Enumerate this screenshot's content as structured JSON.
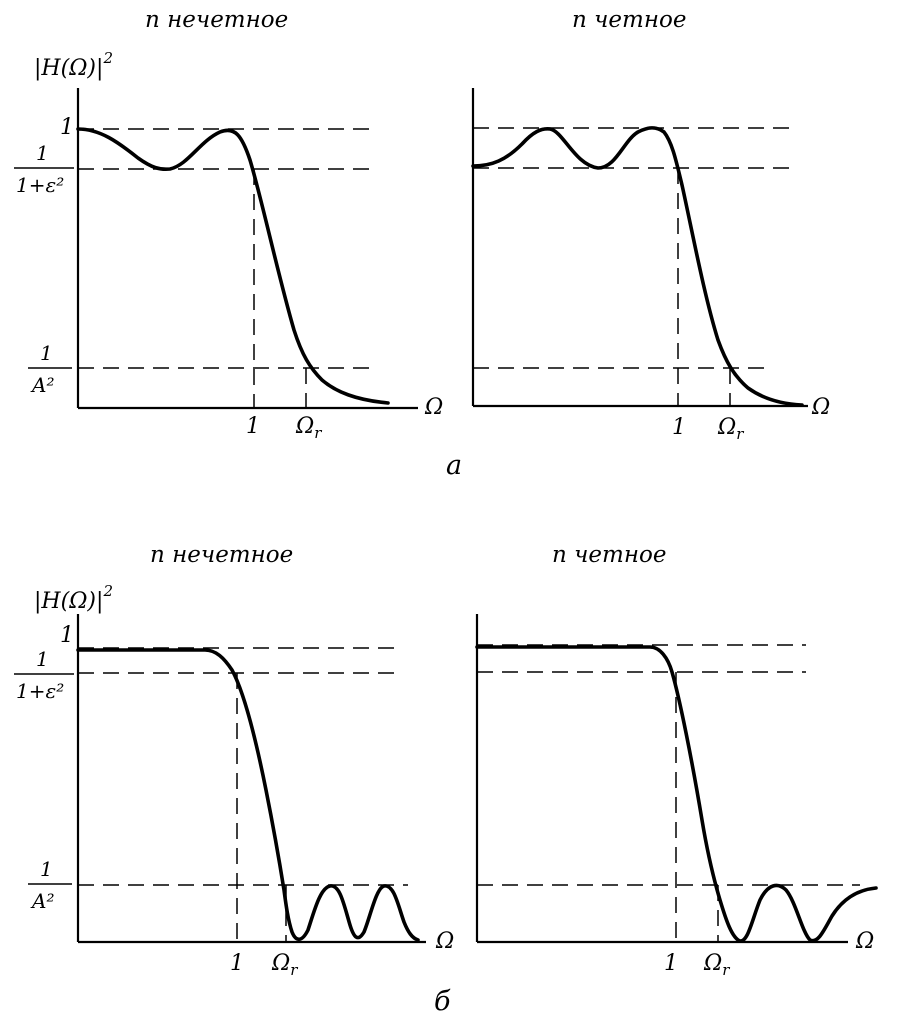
{
  "titles": {
    "odd": "n нечетное",
    "even": "n четное"
  },
  "y_axis_label": "|H(Ω)|²",
  "y_ticks": {
    "one": "1",
    "ripple_num": "1",
    "ripple_den": "1+ε²",
    "stop_num": "1",
    "stop_den": "A²"
  },
  "x_axis_label": "Ω",
  "x_ticks": {
    "one": "1",
    "omega_r": "Ωr"
  },
  "panel_labels": {
    "top": "а",
    "bottom": "б"
  }
}
